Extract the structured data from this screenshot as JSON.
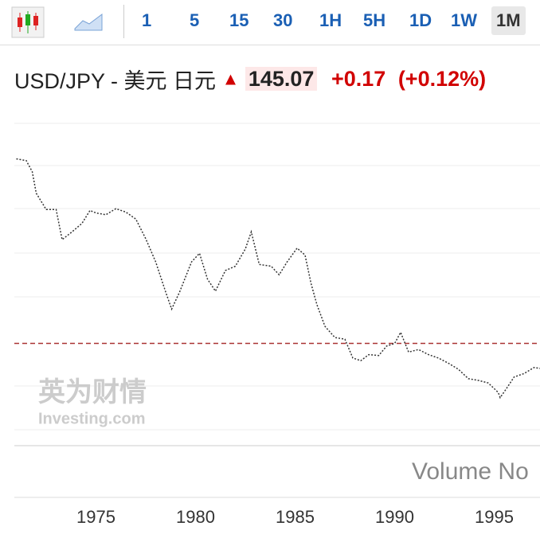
{
  "header": {
    "symbol": "USD/JPY - 美元 日元",
    "change": "+0.17",
    "change_pct": "(+0.12%)"
  },
  "toolbar": {
    "timeframes": [
      "1",
      "5",
      "15",
      "30",
      "1H",
      "5H",
      "1D",
      "1W",
      "1M"
    ],
    "selected": "1M"
  },
  "chart_data": {
    "type": "line",
    "last_price": 145.07,
    "color": "#333333",
    "price_line_color": "#a33",
    "watermark": [
      "英为财情",
      "Investing.com"
    ],
    "volume_label": "Volume No",
    "x": [
      1971.0,
      1971.5,
      1971.8,
      1972.0,
      1972.5,
      1973.0,
      1973.3,
      1973.8,
      1974.3,
      1974.7,
      1975.0,
      1975.5,
      1976.0,
      1976.5,
      1977.0,
      1977.5,
      1978.0,
      1978.5,
      1978.8,
      1979.2,
      1979.8,
      1980.2,
      1980.6,
      1981.0,
      1981.5,
      1982.0,
      1982.5,
      1982.8,
      1983.2,
      1983.8,
      1984.2,
      1984.6,
      1985.1,
      1985.5,
      1985.8,
      1986.1,
      1986.5,
      1987.0,
      1987.5,
      1987.9,
      1988.3,
      1988.7,
      1989.2,
      1989.6,
      1990.0,
      1990.3,
      1990.7,
      1991.2,
      1991.7,
      1992.2,
      1992.7,
      1993.2,
      1993.7,
      1994.2,
      1994.7,
      1995.2,
      1995.3,
      1995.6,
      1996.0,
      1996.5,
      1997.0,
      1997.3
    ],
    "values": [
      360,
      358,
      345,
      320,
      301,
      301,
      266,
      275,
      285,
      300,
      297,
      295,
      302,
      298,
      290,
      267,
      240,
      205,
      185,
      205,
      240,
      250,
      220,
      206,
      230,
      235,
      255,
      275,
      237,
      235,
      225,
      240,
      256,
      248,
      215,
      190,
      165,
      152,
      150,
      128,
      125,
      132,
      131,
      142,
      145,
      158,
      135,
      138,
      132,
      128,
      122,
      115,
      104,
      102,
      99,
      88,
      82,
      92,
      106,
      110,
      117,
      116
    ],
    "xlim": [
      1970.9,
      1997.3
    ],
    "ylim": [
      26,
      406
    ],
    "xticks": [
      1975,
      1980,
      1985,
      1990,
      1995
    ]
  }
}
